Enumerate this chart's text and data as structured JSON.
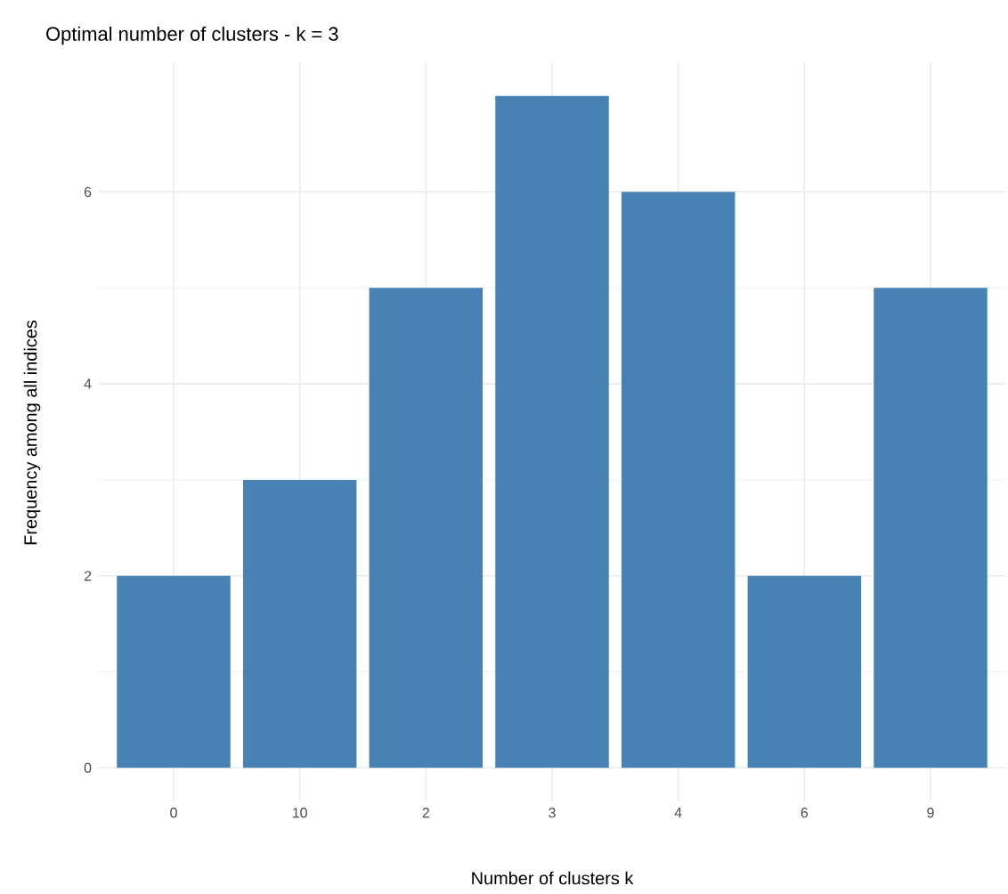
{
  "chart_data": {
    "type": "bar",
    "title": "Optimal number of clusters - k = 3",
    "xlabel": "Number of clusters k",
    "ylabel": "Frequency among all indices",
    "categories": [
      "0",
      "10",
      "2",
      "3",
      "4",
      "6",
      "9"
    ],
    "values": [
      2,
      3,
      5,
      7,
      6,
      2,
      5
    ],
    "color": "#4682b4",
    "ylim": [
      -0.35,
      7.35
    ],
    "yticks": [
      0,
      2,
      4,
      6
    ],
    "grid": true
  }
}
